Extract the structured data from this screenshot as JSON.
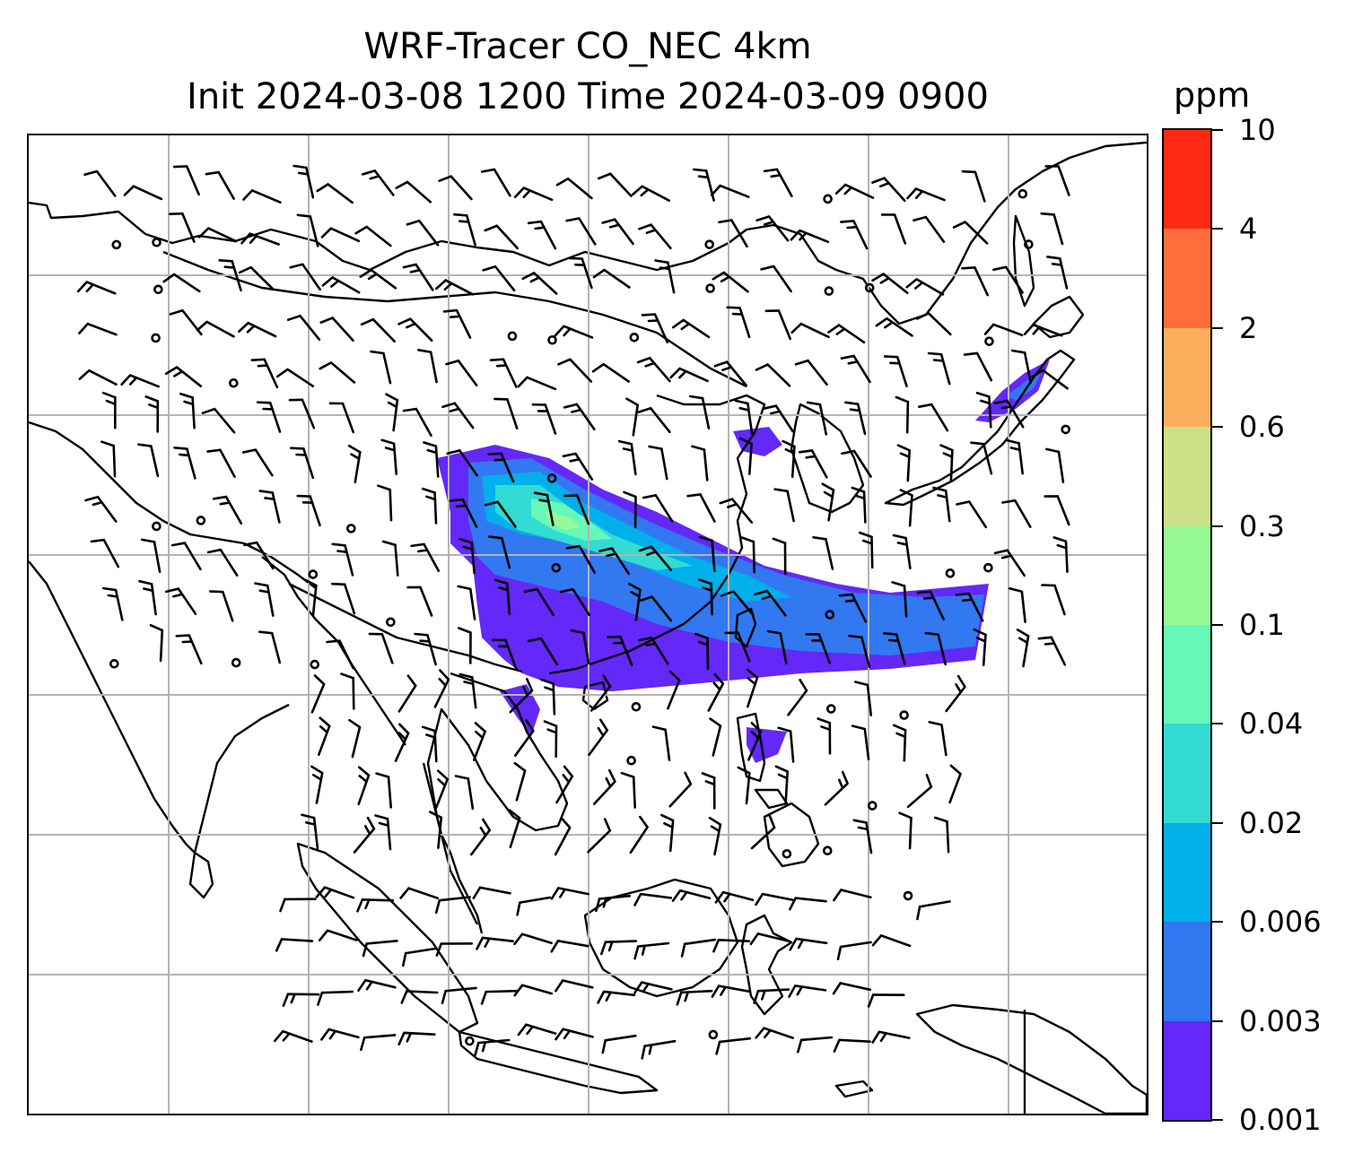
{
  "title": {
    "line1": "WRF-Tracer CO_NEC 4km",
    "line2": "Init 2024-03-08 1200 Time 2024-03-09 0900"
  },
  "colorbar": {
    "unit": "ppm",
    "levels": [
      "0.001",
      "0.003",
      "0.006",
      "0.02",
      "0.04",
      "0.1",
      "0.3",
      "0.6",
      "2",
      "4",
      "10"
    ],
    "colors": [
      "#6428f8",
      "#3278f0",
      "#00b0ea",
      "#32dcd2",
      "#66f8b8",
      "#98fa96",
      "#cce088",
      "#fcb05e",
      "#ff6e3a",
      "#ff2a14"
    ]
  },
  "map": {
    "gridlines": true,
    "features": [
      "coastlines",
      "country-borders",
      "wind-barbs",
      "tracer-plume"
    ]
  }
}
